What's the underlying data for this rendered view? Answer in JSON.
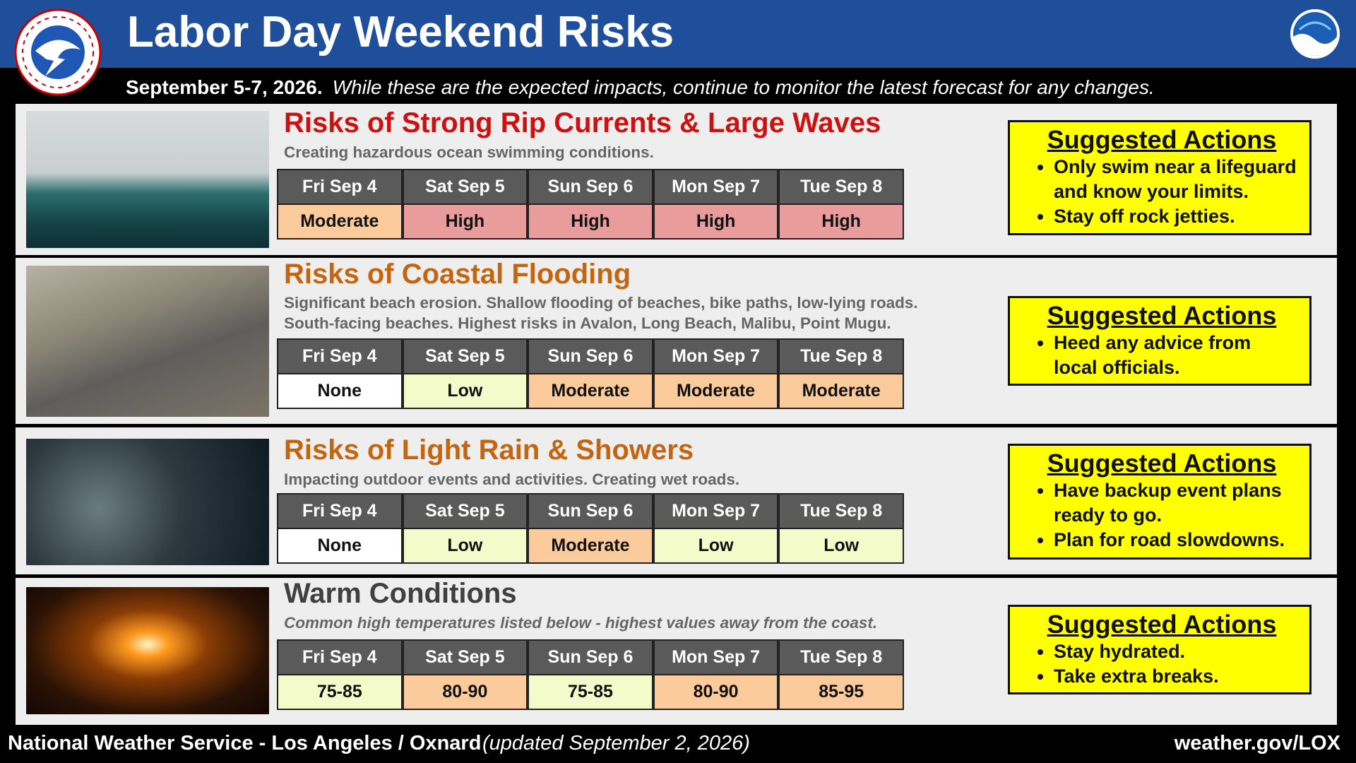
{
  "header": {
    "title": "Labor Day Weekend Risks",
    "date": "September 5-7, 2026.",
    "note": "While these are the expected impacts, continue to monitor the latest forecast for any changes."
  },
  "sections": [
    {
      "title": "Risks of Strong Rip Currents & Large Waves",
      "title_color": "#cc1111",
      "description": [
        "Creating hazardous ocean swimming conditions."
      ],
      "description_italic": false,
      "days": [
        "Fri Sep 4",
        "Sat Sep 5",
        "Sun Sep 6",
        "Mon Sep 7",
        "Tue Sep 8"
      ],
      "values": [
        "Moderate",
        "High",
        "High",
        "High",
        "High"
      ],
      "cell_colors": [
        "#fbcb9b",
        "#e89c9c",
        "#e89c9c",
        "#e89c9c",
        "#e89c9c"
      ],
      "actions_title": "Suggested Actions",
      "actions": [
        "Only swim near a lifeguard and know your limits.",
        "Stay off rock jetties."
      ]
    },
    {
      "title": "Risks of Coastal Flooding",
      "title_color": "#c4650f",
      "description": [
        "Significant beach erosion. Shallow flooding of beaches, bike paths, low-lying roads.",
        "South-facing beaches.  Highest risks in Avalon, Long Beach, Malibu, Point Mugu."
      ],
      "description_italic": false,
      "days": [
        "Fri Sep 4",
        "Sat Sep 5",
        "Sun Sep 6",
        "Mon Sep 7",
        "Tue Sep 8"
      ],
      "values": [
        "None",
        "Low",
        "Moderate",
        "Moderate",
        "Moderate"
      ],
      "cell_colors": [
        "#ffffff",
        "#f2fbc9",
        "#fbcb9b",
        "#fbcb9b",
        "#fbcb9b"
      ],
      "actions_title": "Suggested Actions",
      "actions": [
        "Heed any advice from local officials."
      ]
    },
    {
      "title": "Risks of Light Rain & Showers",
      "title_color": "#c4650f",
      "description": [
        "Impacting outdoor events and activities. Creating wet roads."
      ],
      "description_italic": false,
      "days": [
        "Fri Sep 4",
        "Sat Sep 5",
        "Sun Sep 6",
        "Mon Sep 7",
        "Tue Sep 8"
      ],
      "values": [
        "None",
        "Low",
        "Moderate",
        "Low",
        "Low"
      ],
      "cell_colors": [
        "#ffffff",
        "#f2fbc9",
        "#fbcb9b",
        "#f2fbc9",
        "#f2fbc9"
      ],
      "actions_title": "Suggested Actions",
      "actions": [
        "Have backup event plans ready to go.",
        "Plan for road slowdowns."
      ]
    },
    {
      "title": "Warm Conditions",
      "title_color": "#404040",
      "description": [
        "Common high temperatures listed below - highest values away from the coast."
      ],
      "description_italic": true,
      "days": [
        "Fri Sep 4",
        "Sat Sep 5",
        "Sun Sep 6",
        "Mon Sep 7",
        "Tue Sep 8"
      ],
      "values": [
        "75-85",
        "80-90",
        "75-85",
        "80-90",
        "85-95"
      ],
      "cell_colors": [
        "#f2fbc9",
        "#fbcb9b",
        "#f2fbc9",
        "#fbcb9b",
        "#fbcb9b"
      ],
      "actions_title": "Suggested Actions",
      "actions": [
        "Stay hydrated.",
        "Take extra breaks."
      ]
    }
  ],
  "footer": {
    "office": "National Weather Service - Los Angeles / Oxnard",
    "updated": "(updated September 2, 2026)",
    "url": "weather.gov/LOX"
  }
}
